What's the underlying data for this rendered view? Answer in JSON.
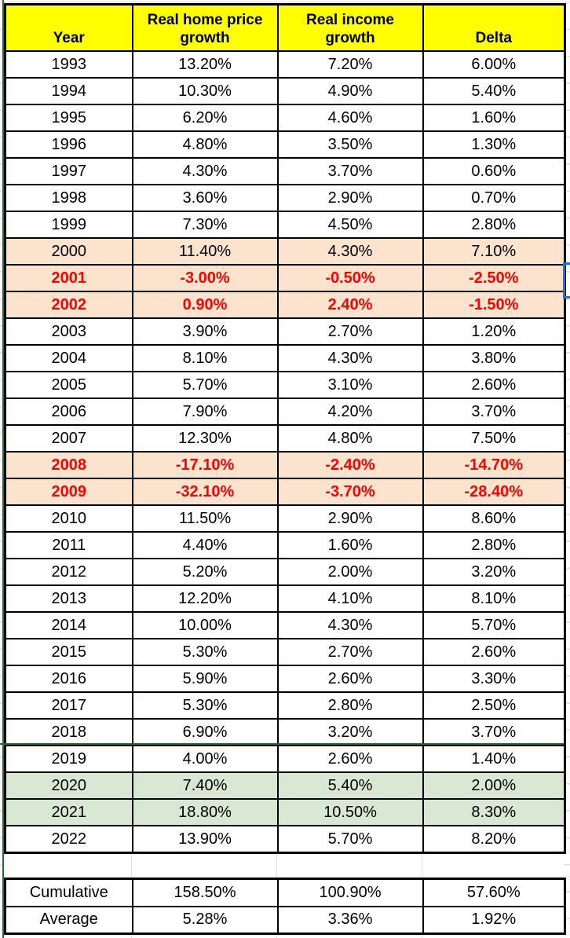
{
  "table": {
    "columns": [
      "Year",
      "Real home price growth",
      "Real income growth",
      "Delta"
    ],
    "rows": [
      {
        "year": "1993",
        "home": "13.20%",
        "income": "7.20%",
        "delta": "6.00%",
        "style": "normal"
      },
      {
        "year": "1994",
        "home": "10.30%",
        "income": "4.90%",
        "delta": "5.40%",
        "style": "normal"
      },
      {
        "year": "1995",
        "home": "6.20%",
        "income": "4.60%",
        "delta": "1.60%",
        "style": "normal"
      },
      {
        "year": "1996",
        "home": "4.80%",
        "income": "3.50%",
        "delta": "1.30%",
        "style": "normal"
      },
      {
        "year": "1997",
        "home": "4.30%",
        "income": "3.70%",
        "delta": "0.60%",
        "style": "normal"
      },
      {
        "year": "1998",
        "home": "3.60%",
        "income": "2.90%",
        "delta": "0.70%",
        "style": "normal"
      },
      {
        "year": "1999",
        "home": "7.30%",
        "income": "4.50%",
        "delta": "2.80%",
        "style": "normal"
      },
      {
        "year": "2000",
        "home": "11.40%",
        "income": "4.30%",
        "delta": "7.10%",
        "style": "peach"
      },
      {
        "year": "2001",
        "home": "-3.00%",
        "income": "-0.50%",
        "delta": "-2.50%",
        "style": "peach-red"
      },
      {
        "year": "2002",
        "home": "0.90%",
        "income": "2.40%",
        "delta": "-1.50%",
        "style": "peach-red"
      },
      {
        "year": "2003",
        "home": "3.90%",
        "income": "2.70%",
        "delta": "1.20%",
        "style": "normal"
      },
      {
        "year": "2004",
        "home": "8.10%",
        "income": "4.30%",
        "delta": "3.80%",
        "style": "normal"
      },
      {
        "year": "2005",
        "home": "5.70%",
        "income": "3.10%",
        "delta": "2.60%",
        "style": "normal"
      },
      {
        "year": "2006",
        "home": "7.90%",
        "income": "4.20%",
        "delta": "3.70%",
        "style": "normal"
      },
      {
        "year": "2007",
        "home": "12.30%",
        "income": "4.80%",
        "delta": "7.50%",
        "style": "normal"
      },
      {
        "year": "2008",
        "home": "-17.10%",
        "income": "-2.40%",
        "delta": "-14.70%",
        "style": "peach-red"
      },
      {
        "year": "2009",
        "home": "-32.10%",
        "income": "-3.70%",
        "delta": "-28.40%",
        "style": "peach-red"
      },
      {
        "year": "2010",
        "home": "11.50%",
        "income": "2.90%",
        "delta": "8.60%",
        "style": "normal"
      },
      {
        "year": "2011",
        "home": "4.40%",
        "income": "1.60%",
        "delta": "2.80%",
        "style": "normal"
      },
      {
        "year": "2012",
        "home": "5.20%",
        "income": "2.00%",
        "delta": "3.20%",
        "style": "normal"
      },
      {
        "year": "2013",
        "home": "12.20%",
        "income": "4.10%",
        "delta": "8.10%",
        "style": "normal"
      },
      {
        "year": "2014",
        "home": "10.00%",
        "income": "4.30%",
        "delta": "5.70%",
        "style": "normal"
      },
      {
        "year": "2015",
        "home": "5.30%",
        "income": "2.70%",
        "delta": "2.60%",
        "style": "normal"
      },
      {
        "year": "2016",
        "home": "5.90%",
        "income": "2.60%",
        "delta": "3.30%",
        "style": "normal"
      },
      {
        "year": "2017",
        "home": "5.30%",
        "income": "2.80%",
        "delta": "2.50%",
        "style": "normal"
      },
      {
        "year": "2018",
        "home": "6.90%",
        "income": "3.20%",
        "delta": "3.70%",
        "style": "normal"
      },
      {
        "year": "2019",
        "home": "4.00%",
        "income": "2.60%",
        "delta": "1.40%",
        "style": "normal"
      },
      {
        "year": "2020",
        "home": "7.40%",
        "income": "5.40%",
        "delta": "2.00%",
        "style": "green"
      },
      {
        "year": "2021",
        "home": "18.80%",
        "income": "10.50%",
        "delta": "8.30%",
        "style": "green"
      },
      {
        "year": "2022",
        "home": "13.90%",
        "income": "5.70%",
        "delta": "8.20%",
        "style": "normal"
      }
    ],
    "summary": [
      {
        "label": "Cumulative",
        "home": "158.50%",
        "income": "100.90%",
        "delta": "57.60%"
      },
      {
        "label": "Average",
        "home": "5.28%",
        "income": "3.36%",
        "delta": "1.92%"
      }
    ]
  },
  "colors": {
    "header_bg": "#FFFF00",
    "highlight_negative_bg": "#FBE3CE",
    "highlight_positive_bg": "#D9E8D2",
    "negative_text": "#FF0000",
    "border_black": "#000000",
    "gridline_gray": "#DCDCDC",
    "pane_line_green": "#1D6F33",
    "selection_blue": "#1A73E8"
  }
}
